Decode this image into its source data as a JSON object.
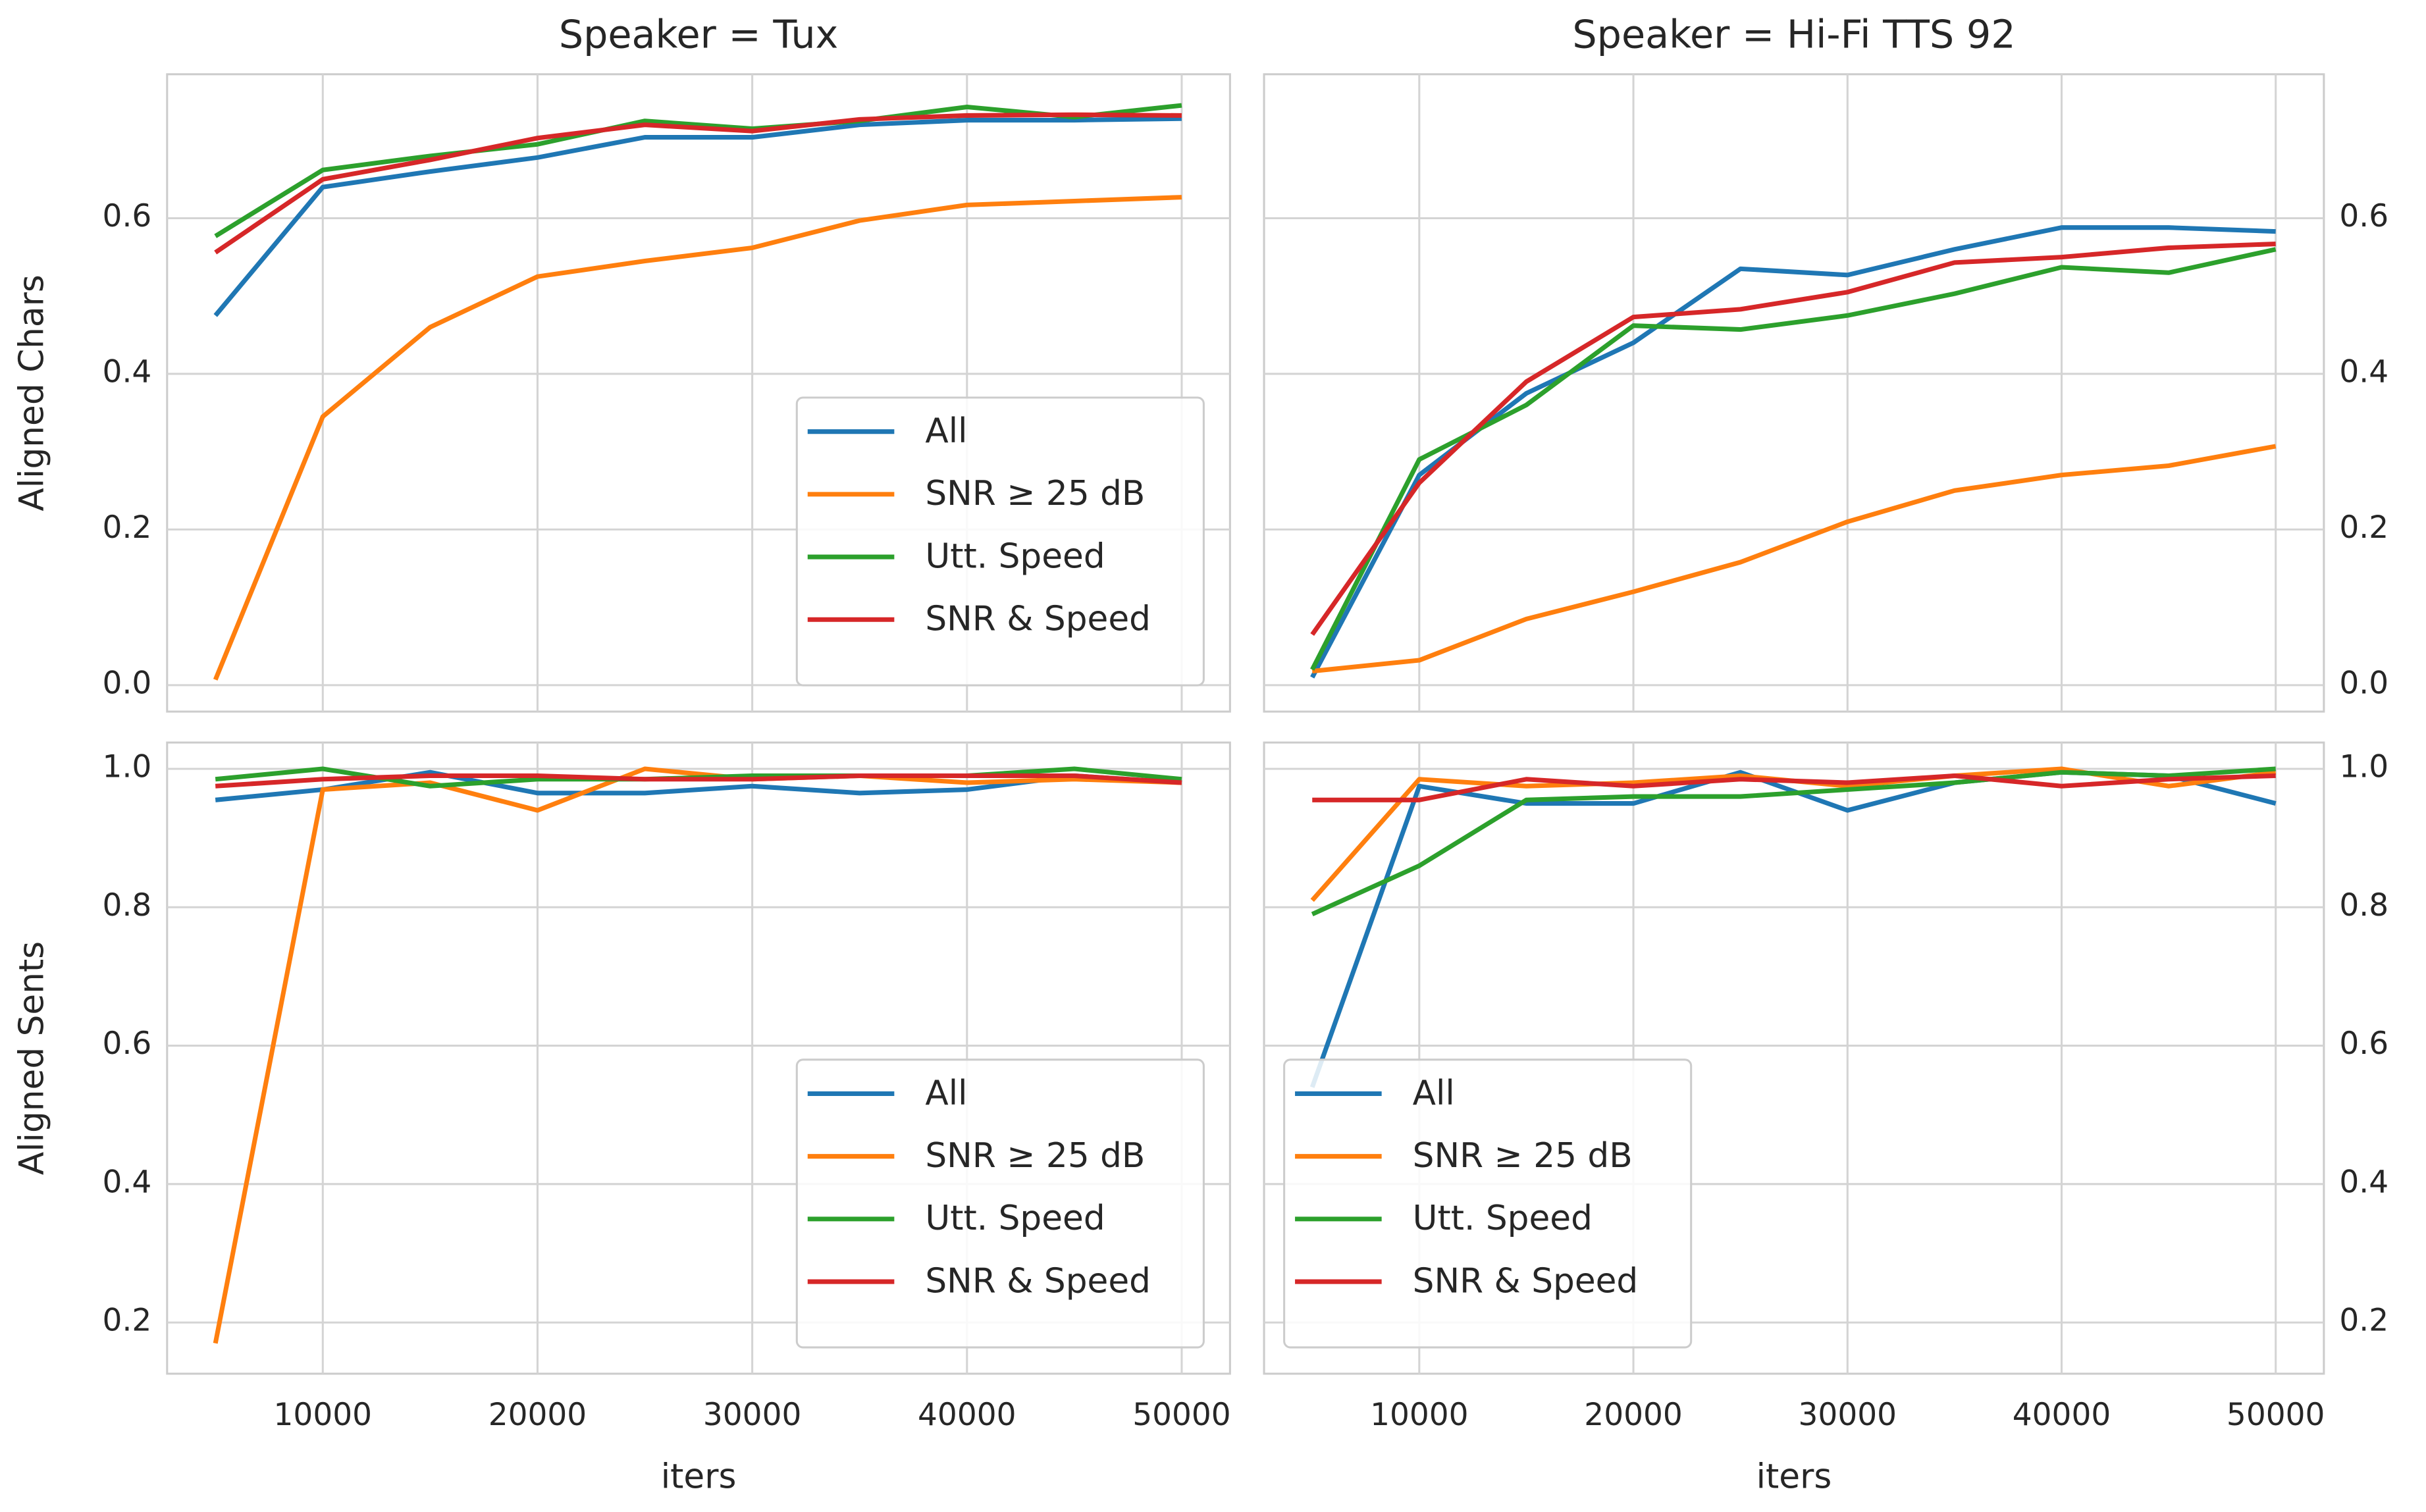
{
  "chart_data": [
    {
      "type": "line",
      "title": "Speaker = Tux",
      "ylabel": "Aligned Chars",
      "x": [
        5000,
        10000,
        15000,
        20000,
        25000,
        30000,
        35000,
        40000,
        45000,
        50000
      ],
      "xlim": [
        2750,
        52250
      ],
      "xticks": [
        10000,
        20000,
        30000,
        40000,
        50000
      ],
      "ylim": [
        -0.034,
        0.785
      ],
      "yticks": [
        {
          "value": 0,
          "label": "0.0"
        },
        0.2,
        0.4,
        0.6
      ],
      "yaxis": "left",
      "grid": true,
      "legend": "lower right",
      "series": [
        {
          "name": "All",
          "color": "#1f77b4",
          "values": [
            0.475,
            0.64,
            0.66,
            0.678,
            0.704,
            0.704,
            0.72,
            0.726,
            0.726,
            0.728
          ]
        },
        {
          "name": "SNR ≥ 25 dB",
          "color": "#ff7f0e",
          "values": [
            0.007,
            0.345,
            0.46,
            0.525,
            0.545,
            0.562,
            0.597,
            0.617,
            0.622,
            0.627
          ]
        },
        {
          "name": "Utt. Speed",
          "color": "#2ca02c",
          "values": [
            0.577,
            0.662,
            0.68,
            0.695,
            0.725,
            0.715,
            0.725,
            0.743,
            0.73,
            0.745
          ]
        },
        {
          "name": "SNR & Speed",
          "color": "#d62728",
          "values": [
            0.556,
            0.65,
            0.675,
            0.703,
            0.72,
            0.712,
            0.727,
            0.732,
            0.733,
            0.732
          ]
        }
      ]
    },
    {
      "type": "line",
      "title": "Speaker = Hi-Fi TTS 92",
      "x": [
        5000,
        10000,
        15000,
        20000,
        25000,
        30000,
        35000,
        40000,
        45000,
        50000
      ],
      "xlim": [
        2750,
        52250
      ],
      "xticks": [
        10000,
        20000,
        30000,
        40000,
        50000
      ],
      "ylim": [
        -0.034,
        0.785
      ],
      "yticks": [
        {
          "value": 0,
          "label": "0.0"
        },
        0.2,
        0.4,
        0.6
      ],
      "yaxis": "right",
      "grid": true,
      "series": [
        {
          "color": "#1f77b4",
          "values": [
            0.01,
            0.27,
            0.375,
            0.44,
            0.535,
            0.527,
            0.56,
            0.588,
            0.588,
            0.583
          ]
        },
        {
          "color": "#ff7f0e",
          "values": [
            0.018,
            0.032,
            0.085,
            0.12,
            0.158,
            0.21,
            0.25,
            0.27,
            0.282,
            0.307
          ]
        },
        {
          "color": "#2ca02c",
          "values": [
            0.02,
            0.29,
            0.36,
            0.462,
            0.457,
            0.475,
            0.503,
            0.537,
            0.53,
            0.56
          ]
        },
        {
          "color": "#d62728",
          "values": [
            0.065,
            0.26,
            0.39,
            0.473,
            0.483,
            0.505,
            0.543,
            0.55,
            0.562,
            0.567
          ]
        }
      ]
    },
    {
      "type": "line",
      "ylabel": "Aligned Sents",
      "xlabel": "iters",
      "x": [
        5000,
        10000,
        15000,
        20000,
        25000,
        30000,
        35000,
        40000,
        45000,
        50000
      ],
      "xlim": [
        2750,
        52250
      ],
      "xticks": [
        10000,
        20000,
        30000,
        40000,
        50000
      ],
      "ylim": [
        0.126,
        1.038
      ],
      "yticks": [
        0.2,
        0.4,
        0.6,
        0.8,
        {
          "value": 1,
          "label": "1.0"
        }
      ],
      "yaxis": "left",
      "grid": true,
      "legend": "lower right",
      "series": [
        {
          "name": "All",
          "color": "#1f77b4",
          "values": [
            0.955,
            0.97,
            0.995,
            0.965,
            0.965,
            0.975,
            0.965,
            0.97,
            0.99,
            0.98
          ]
        },
        {
          "name": "SNR ≥ 25 dB",
          "color": "#ff7f0e",
          "values": [
            0.17,
            0.97,
            0.98,
            0.94,
            1.0,
            0.985,
            0.99,
            0.98,
            0.985,
            0.98
          ]
        },
        {
          "name": "Utt. Speed",
          "color": "#2ca02c",
          "values": [
            0.985,
            1.0,
            0.975,
            0.985,
            0.985,
            0.99,
            0.99,
            0.99,
            1.0,
            0.985
          ]
        },
        {
          "name": "SNR & Speed",
          "color": "#d62728",
          "values": [
            0.975,
            0.985,
            0.99,
            0.99,
            0.985,
            0.985,
            0.99,
            0.99,
            0.99,
            0.98
          ]
        }
      ]
    },
    {
      "type": "line",
      "xlabel": "iters",
      "x": [
        5000,
        10000,
        15000,
        20000,
        25000,
        30000,
        35000,
        40000,
        45000,
        50000
      ],
      "xlim": [
        2750,
        52250
      ],
      "xticks": [
        10000,
        20000,
        30000,
        40000,
        50000
      ],
      "ylim": [
        0.126,
        1.038
      ],
      "yticks": [
        0.2,
        0.4,
        0.6,
        0.8,
        {
          "value": 1,
          "label": "1.0"
        }
      ],
      "yaxis": "right",
      "grid": true,
      "legend": "lower left",
      "series": [
        {
          "name": "All",
          "color": "#1f77b4",
          "values": [
            0.54,
            0.975,
            0.95,
            0.95,
            0.995,
            0.94,
            0.98,
            0.995,
            0.99,
            0.95
          ]
        },
        {
          "name": "SNR ≥ 25 dB",
          "color": "#ff7f0e",
          "values": [
            0.81,
            0.985,
            0.975,
            0.98,
            0.99,
            0.975,
            0.99,
            1.0,
            0.975,
            0.995
          ]
        },
        {
          "name": "Utt. Speed",
          "color": "#2ca02c",
          "values": [
            0.79,
            0.86,
            0.955,
            0.96,
            0.96,
            0.97,
            0.98,
            0.995,
            0.99,
            1.0
          ]
        },
        {
          "name": "SNR & Speed",
          "color": "#d62728",
          "values": [
            0.955,
            0.955,
            0.985,
            0.975,
            0.985,
            0.98,
            0.99,
            0.975,
            0.985,
            0.99
          ]
        }
      ]
    }
  ]
}
